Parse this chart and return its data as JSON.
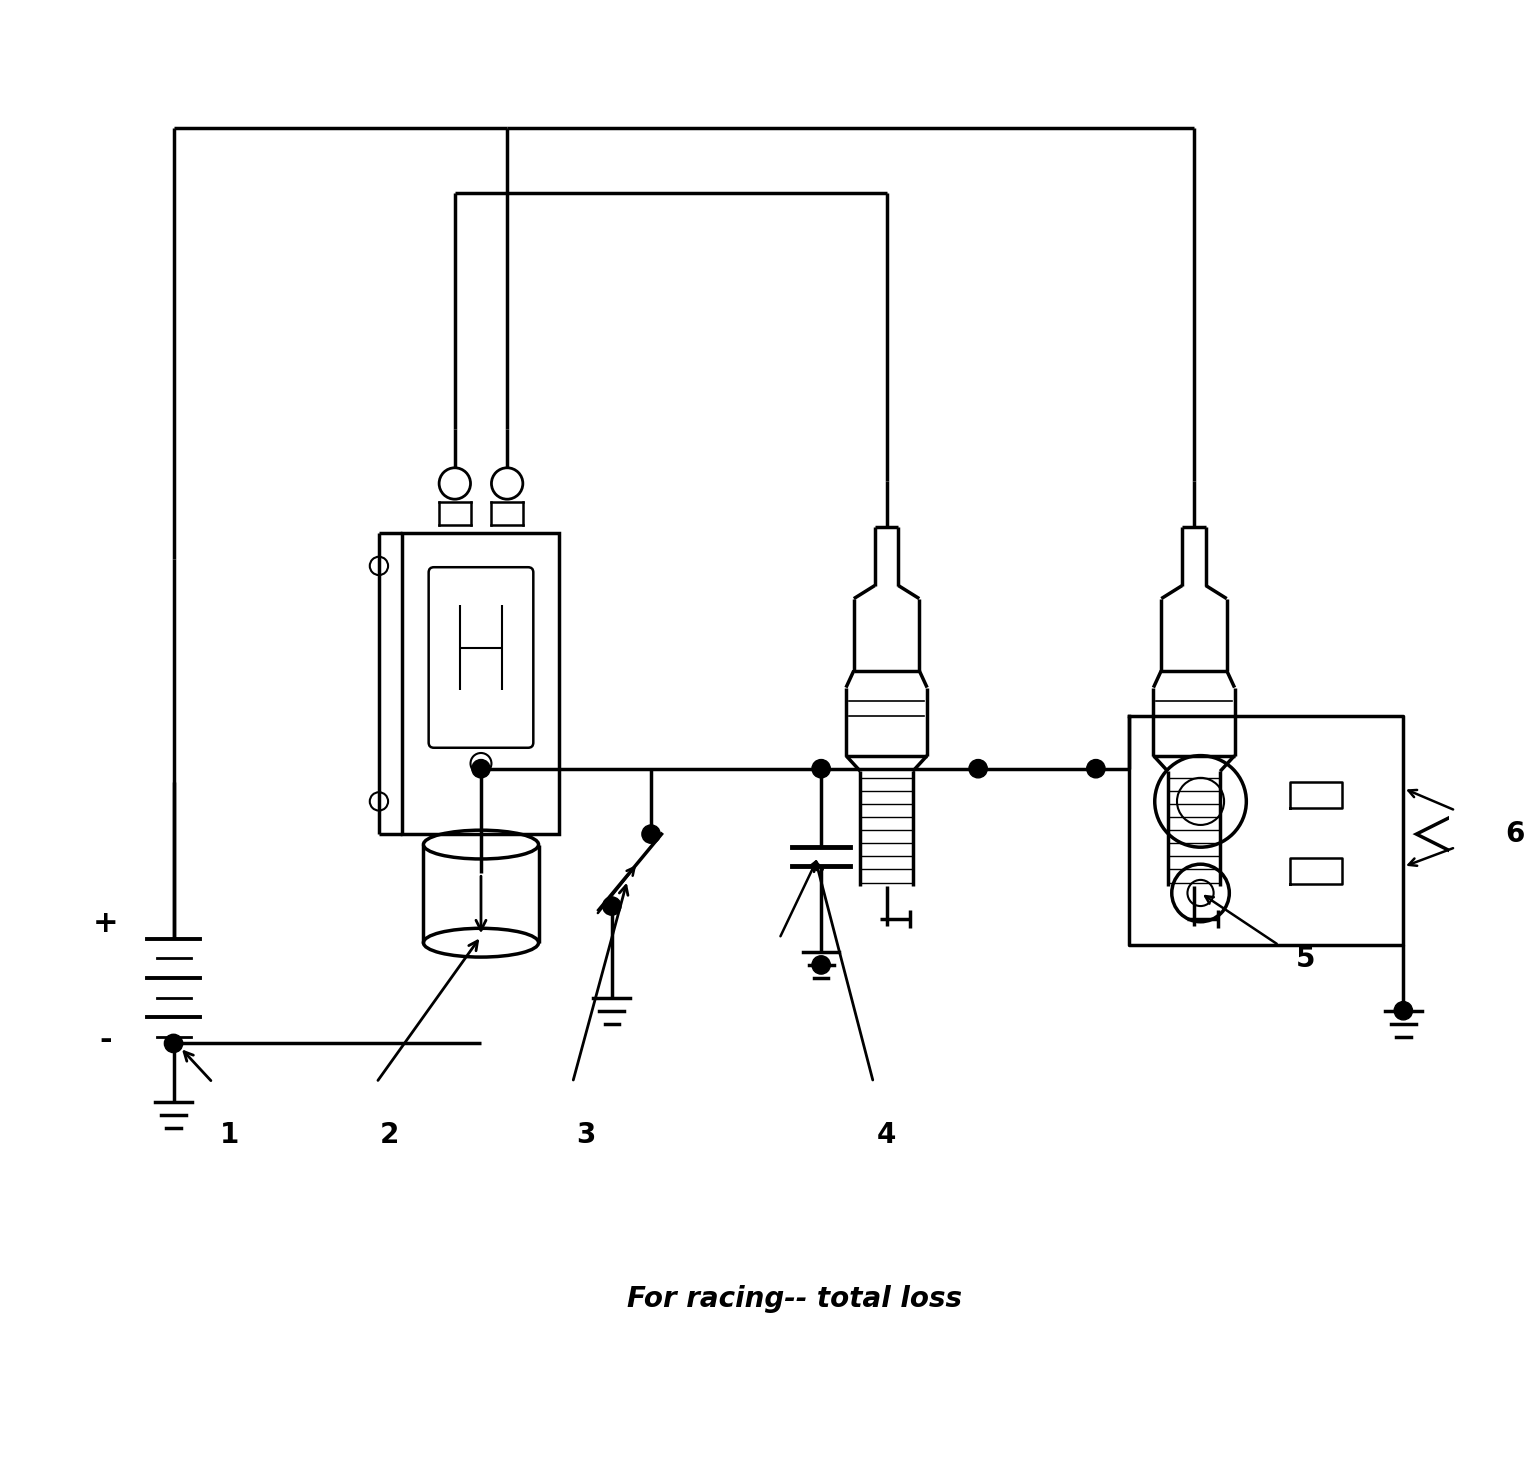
{
  "title": "For racing-- total loss",
  "title_fontsize": 20,
  "title_fontstyle": "italic",
  "background_color": "#ffffff",
  "line_color": "#000000",
  "line_width": 2.5,
  "labels": [
    "1",
    "2",
    "3",
    "4",
    "5",
    "6",
    "+",
    "-"
  ]
}
